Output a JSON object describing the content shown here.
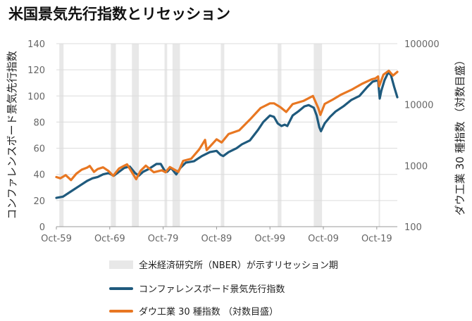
{
  "title": "米国景気先行指数とリセッション",
  "chart_data": {
    "type": "line",
    "title": "米国景気先行指数とリセッション",
    "y_left_label": "コンファレンスボード景気先行指数",
    "y_right_label": "ダウ工業 30 種指数 （対数目盛）",
    "y_left_range": [
      0,
      140
    ],
    "y_left_ticks": [
      "0",
      "20",
      "40",
      "60",
      "80",
      "100",
      "120",
      "140"
    ],
    "y_right_range": [
      100,
      100000
    ],
    "y_right_scale": "log",
    "y_right_ticks": [
      "100",
      "1000",
      "10000",
      "100000"
    ],
    "x_range": [
      1959.75,
      2023.6
    ],
    "x_ticks": [
      {
        "year": 1959.75,
        "label": "Oct-59"
      },
      {
        "year": 1969.75,
        "label": "Oct-69"
      },
      {
        "year": 1979.75,
        "label": "Oct-79"
      },
      {
        "year": 1989.75,
        "label": "Oct-89"
      },
      {
        "year": 1999.75,
        "label": "Oct-99"
      },
      {
        "year": 2009.75,
        "label": "Oct-09"
      },
      {
        "year": 2019.75,
        "label": "Oct-19"
      }
    ],
    "grid": "horizontal",
    "legend_position": "bottom",
    "recessions": [
      {
        "start": 1960.3,
        "end": 1961.1
      },
      {
        "start": 1969.95,
        "end": 1970.9
      },
      {
        "start": 1973.9,
        "end": 1975.2
      },
      {
        "start": 1980.0,
        "end": 1980.5
      },
      {
        "start": 1981.5,
        "end": 1982.9
      },
      {
        "start": 1990.55,
        "end": 1991.2
      },
      {
        "start": 2001.2,
        "end": 2001.9
      },
      {
        "start": 2007.95,
        "end": 2009.5
      },
      {
        "start": 2020.1,
        "end": 2020.35
      }
    ],
    "recession_label": "全米経済研究所（NBER）が示すリセッション期",
    "recession_color": "#e8e8e8",
    "series": [
      {
        "name": "コンファレンスボード景気先行指数",
        "axis": "left",
        "color": "#1f5a7d",
        "points": [
          [
            1959.75,
            22
          ],
          [
            1961.0,
            23
          ],
          [
            1962.5,
            27
          ],
          [
            1964.0,
            31
          ],
          [
            1965.5,
            35
          ],
          [
            1966.5,
            37
          ],
          [
            1967.5,
            38
          ],
          [
            1968.5,
            40
          ],
          [
            1969.5,
            41
          ],
          [
            1970.5,
            39
          ],
          [
            1971.5,
            42
          ],
          [
            1972.5,
            45
          ],
          [
            1973.5,
            46
          ],
          [
            1974.5,
            41
          ],
          [
            1975.2,
            39
          ],
          [
            1976.0,
            42
          ],
          [
            1977.0,
            44
          ],
          [
            1978.5,
            48
          ],
          [
            1979.3,
            48
          ],
          [
            1980.0,
            43
          ],
          [
            1980.5,
            42
          ],
          [
            1981.2,
            45
          ],
          [
            1982.2,
            40
          ],
          [
            1983.0,
            45
          ],
          [
            1984.0,
            49
          ],
          [
            1985.5,
            50
          ],
          [
            1987.0,
            54
          ],
          [
            1988.5,
            57
          ],
          [
            1989.75,
            58
          ],
          [
            1990.5,
            55
          ],
          [
            1991.0,
            54
          ],
          [
            1992.0,
            57
          ],
          [
            1993.5,
            60
          ],
          [
            1994.5,
            63
          ],
          [
            1996.0,
            66
          ],
          [
            1997.5,
            74
          ],
          [
            1998.5,
            80
          ],
          [
            1999.75,
            85
          ],
          [
            2000.5,
            84
          ],
          [
            2001.2,
            79
          ],
          [
            2001.9,
            77
          ],
          [
            2002.5,
            78
          ],
          [
            2003.0,
            77
          ],
          [
            2004.0,
            85
          ],
          [
            2005.0,
            88
          ],
          [
            2006.2,
            92
          ],
          [
            2007.0,
            93
          ],
          [
            2007.95,
            91
          ],
          [
            2008.5,
            85
          ],
          [
            2009.0,
            76
          ],
          [
            2009.3,
            73
          ],
          [
            2010.0,
            79
          ],
          [
            2011.0,
            84
          ],
          [
            2012.0,
            88
          ],
          [
            2013.5,
            92
          ],
          [
            2015.0,
            97
          ],
          [
            2016.5,
            100
          ],
          [
            2018.0,
            107
          ],
          [
            2019.0,
            111
          ],
          [
            2020.0,
            112
          ],
          [
            2020.3,
            98
          ],
          [
            2020.6,
            104
          ],
          [
            2021.2,
            112
          ],
          [
            2021.9,
            118
          ],
          [
            2022.4,
            116
          ],
          [
            2023.0,
            107
          ],
          [
            2023.6,
            99
          ]
        ]
      },
      {
        "name": "ダウ工業 30 種指数 （対数目盛）",
        "axis": "right",
        "color": "#e87722",
        "points": [
          [
            1959.75,
            650
          ],
          [
            1960.5,
            620
          ],
          [
            1961.5,
            700
          ],
          [
            1962.5,
            580
          ],
          [
            1963.5,
            740
          ],
          [
            1964.5,
            860
          ],
          [
            1965.5,
            930
          ],
          [
            1966.0,
            990
          ],
          [
            1966.8,
            790
          ],
          [
            1967.5,
            880
          ],
          [
            1968.5,
            940
          ],
          [
            1969.5,
            820
          ],
          [
            1970.4,
            680
          ],
          [
            1971.5,
            900
          ],
          [
            1972.5,
            1000
          ],
          [
            1973.0,
            1050
          ],
          [
            1974.7,
            600
          ],
          [
            1975.5,
            820
          ],
          [
            1976.5,
            1000
          ],
          [
            1978.0,
            780
          ],
          [
            1979.5,
            840
          ],
          [
            1980.2,
            780
          ],
          [
            1981.0,
            950
          ],
          [
            1982.6,
            790
          ],
          [
            1983.5,
            1200
          ],
          [
            1985.0,
            1300
          ],
          [
            1986.5,
            1850
          ],
          [
            1987.6,
            2650
          ],
          [
            1987.9,
            1800
          ],
          [
            1989.75,
            2700
          ],
          [
            1990.7,
            2400
          ],
          [
            1992.0,
            3300
          ],
          [
            1994.0,
            3800
          ],
          [
            1996.0,
            5700
          ],
          [
            1998.0,
            8800
          ],
          [
            1999.75,
            10500
          ],
          [
            2000.5,
            10500
          ],
          [
            2001.7,
            9100
          ],
          [
            2002.8,
            7600
          ],
          [
            2004.0,
            10200
          ],
          [
            2006.0,
            11500
          ],
          [
            2007.8,
            13900
          ],
          [
            2008.8,
            8800
          ],
          [
            2009.2,
            6800
          ],
          [
            2010.0,
            10300
          ],
          [
            2011.5,
            12100
          ],
          [
            2013.0,
            14500
          ],
          [
            2015.0,
            17500
          ],
          [
            2017.0,
            22000
          ],
          [
            2018.8,
            26000
          ],
          [
            2019.5,
            27000
          ],
          [
            2020.0,
            29000
          ],
          [
            2020.2,
            20000
          ],
          [
            2021.0,
            31000
          ],
          [
            2022.0,
            36000
          ],
          [
            2022.8,
            30000
          ],
          [
            2023.6,
            34500
          ]
        ]
      }
    ]
  }
}
